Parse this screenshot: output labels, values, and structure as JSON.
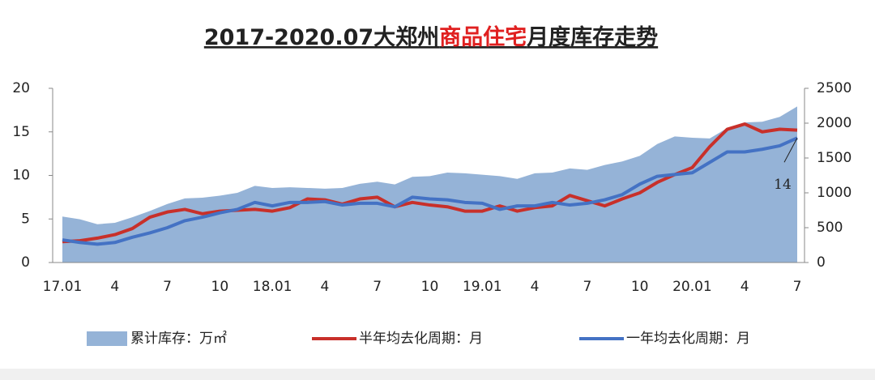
{
  "chart_data": {
    "type": "combo",
    "title": [
      "2017-2020.07大郑州",
      "商品住宅",
      "月度库存走势"
    ],
    "title_highlight_color": "#e02020",
    "categories": [
      "17.01",
      null,
      null,
      "4",
      null,
      null,
      "7",
      null,
      null,
      "10",
      null,
      null,
      "18.01",
      null,
      null,
      "4",
      null,
      null,
      "7",
      null,
      null,
      "10",
      null,
      null,
      "19.01",
      null,
      null,
      "4",
      null,
      null,
      "7",
      null,
      null,
      "10",
      null,
      null,
      "20.01",
      null,
      null,
      "4",
      null,
      null,
      "7"
    ],
    "series": [
      {
        "name": "累计库存：万㎡",
        "type": "area",
        "axis": "y2",
        "color": "#95b3d7",
        "values": [
          660,
          620,
          550,
          570,
          650,
          740,
          840,
          920,
          930,
          960,
          1000,
          1100,
          1070,
          1080,
          1070,
          1060,
          1070,
          1130,
          1160,
          1120,
          1230,
          1240,
          1290,
          1280,
          1260,
          1240,
          1200,
          1280,
          1290,
          1350,
          1330,
          1400,
          1450,
          1530,
          1700,
          1810,
          1790,
          1780,
          1930,
          2010,
          2020,
          2090,
          2240
        ]
      },
      {
        "name": "半年均去化周期：月",
        "type": "line",
        "color": "#c8302a",
        "values": [
          2.4,
          2.5,
          2.8,
          3.2,
          3.9,
          5.2,
          5.8,
          6.1,
          5.6,
          5.9,
          6.0,
          6.1,
          5.9,
          6.3,
          7.3,
          7.2,
          6.7,
          7.3,
          7.5,
          6.4,
          6.9,
          6.6,
          6.4,
          5.9,
          5.9,
          6.5,
          5.9,
          6.3,
          6.5,
          7.7,
          7.1,
          6.5,
          7.3,
          8.0,
          9.2,
          10.1,
          10.9,
          13.3,
          15.3,
          15.9,
          15.0,
          15.3,
          15.2
        ]
      },
      {
        "name": "一年均去化周期：月",
        "type": "line",
        "color": "#4472c4",
        "values": [
          2.6,
          2.3,
          2.1,
          2.3,
          2.9,
          3.4,
          4.0,
          4.8,
          5.2,
          5.7,
          6.1,
          6.9,
          6.5,
          6.9,
          6.9,
          7.0,
          6.6,
          6.8,
          6.8,
          6.4,
          7.5,
          7.3,
          7.2,
          6.9,
          6.8,
          6.1,
          6.5,
          6.5,
          6.9,
          6.6,
          6.8,
          7.2,
          7.8,
          9.0,
          9.9,
          10.1,
          10.3,
          11.5,
          12.7,
          12.7,
          13.0,
          13.4,
          14.3
        ],
        "value_labels": [
          null,
          null,
          null,
          null,
          null,
          null,
          null,
          null,
          null,
          null,
          null,
          null,
          null,
          null,
          null,
          null,
          null,
          null,
          null,
          null,
          null,
          null,
          null,
          null,
          null,
          null,
          null,
          null,
          null,
          null,
          null,
          null,
          null,
          null,
          null,
          null,
          null,
          null,
          null,
          null,
          null,
          null,
          "14"
        ]
      }
    ],
    "ylim": [
      0,
      20
    ],
    "yticks": [
      0,
      5,
      10,
      15,
      20
    ],
    "y2lim": [
      0,
      2500
    ],
    "y2ticks": [
      0,
      500,
      1000,
      1500,
      2000,
      2500
    ],
    "grid": false,
    "legend": "bottom"
  }
}
